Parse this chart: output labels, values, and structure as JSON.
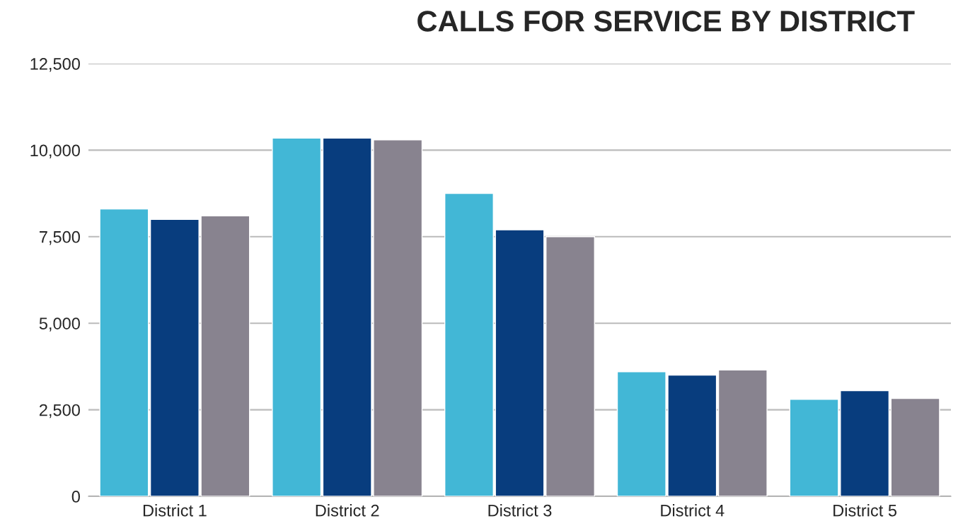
{
  "chart_data": {
    "type": "bar",
    "title": "CALLS FOR SERVICE BY DISTRICT",
    "categories": [
      "District 1",
      "District 2",
      "District 3",
      "District 4",
      "District 5"
    ],
    "series": [
      {
        "color": "#42b7d6",
        "values": [
          8300,
          10350,
          8750,
          3600,
          2800
        ]
      },
      {
        "color": "#083d7e",
        "values": [
          8000,
          10350,
          7700,
          3500,
          3050
        ]
      },
      {
        "color": "#88838f",
        "values": [
          8100,
          10300,
          7500,
          3650,
          2830
        ]
      }
    ],
    "ylim": [
      0,
      12500
    ],
    "yticks": [
      {
        "value": 0,
        "label": "0"
      },
      {
        "value": 2500,
        "label": "2,500"
      },
      {
        "value": 5000,
        "label": "5,000"
      },
      {
        "value": 7500,
        "label": "7,500"
      },
      {
        "value": 10000,
        "label": "10,000"
      },
      {
        "value": 12500,
        "label": "12,500"
      }
    ],
    "grid": "y",
    "legend": false
  }
}
